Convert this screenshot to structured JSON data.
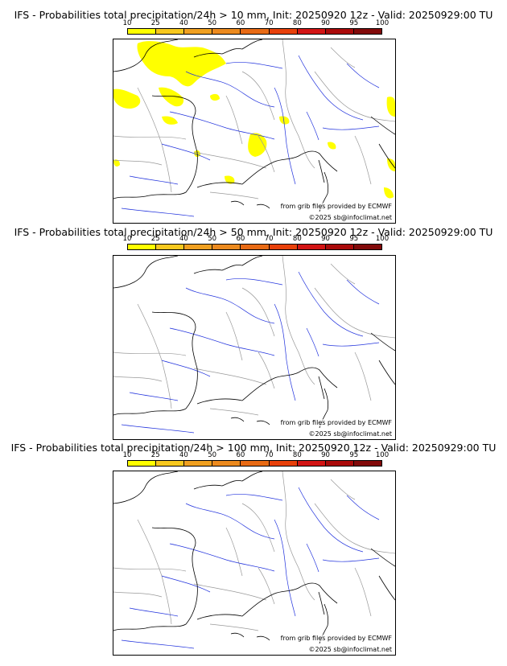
{
  "panels": [
    {
      "title": "IFS - Probabilities total precipitation/24h > 10 mm, Init: 20250920 12z - Valid: 20250929:00 TU",
      "has_precip": true
    },
    {
      "title": "IFS - Probabilities total precipitation/24h > 50 mm, Init: 20250920 12z - Valid: 20250929:00 TU",
      "has_precip": false
    },
    {
      "title": "IFS - Probabilities total precipitation/24h > 100 mm, Init: 20250920 12z - Valid: 20250929:00 TU",
      "has_precip": false
    }
  ],
  "legend": {
    "ticks": [
      "10",
      "25",
      "40",
      "50",
      "60",
      "70",
      "80",
      "90",
      "95",
      "100"
    ],
    "colors": [
      "#ffff00",
      "#f7c81e",
      "#f0a020",
      "#ec8a1e",
      "#e86a14",
      "#e8400a",
      "#d21414",
      "#aa0a0a",
      "#820a0a"
    ]
  },
  "credits": {
    "source": "from grib files provided by ECMWF",
    "copyright": "©2025 sb@infoclimat.net"
  },
  "map_colors": {
    "precip": "#ffff00",
    "coast": "#000000",
    "rivers": "#2233dd",
    "borders": "#999999"
  }
}
